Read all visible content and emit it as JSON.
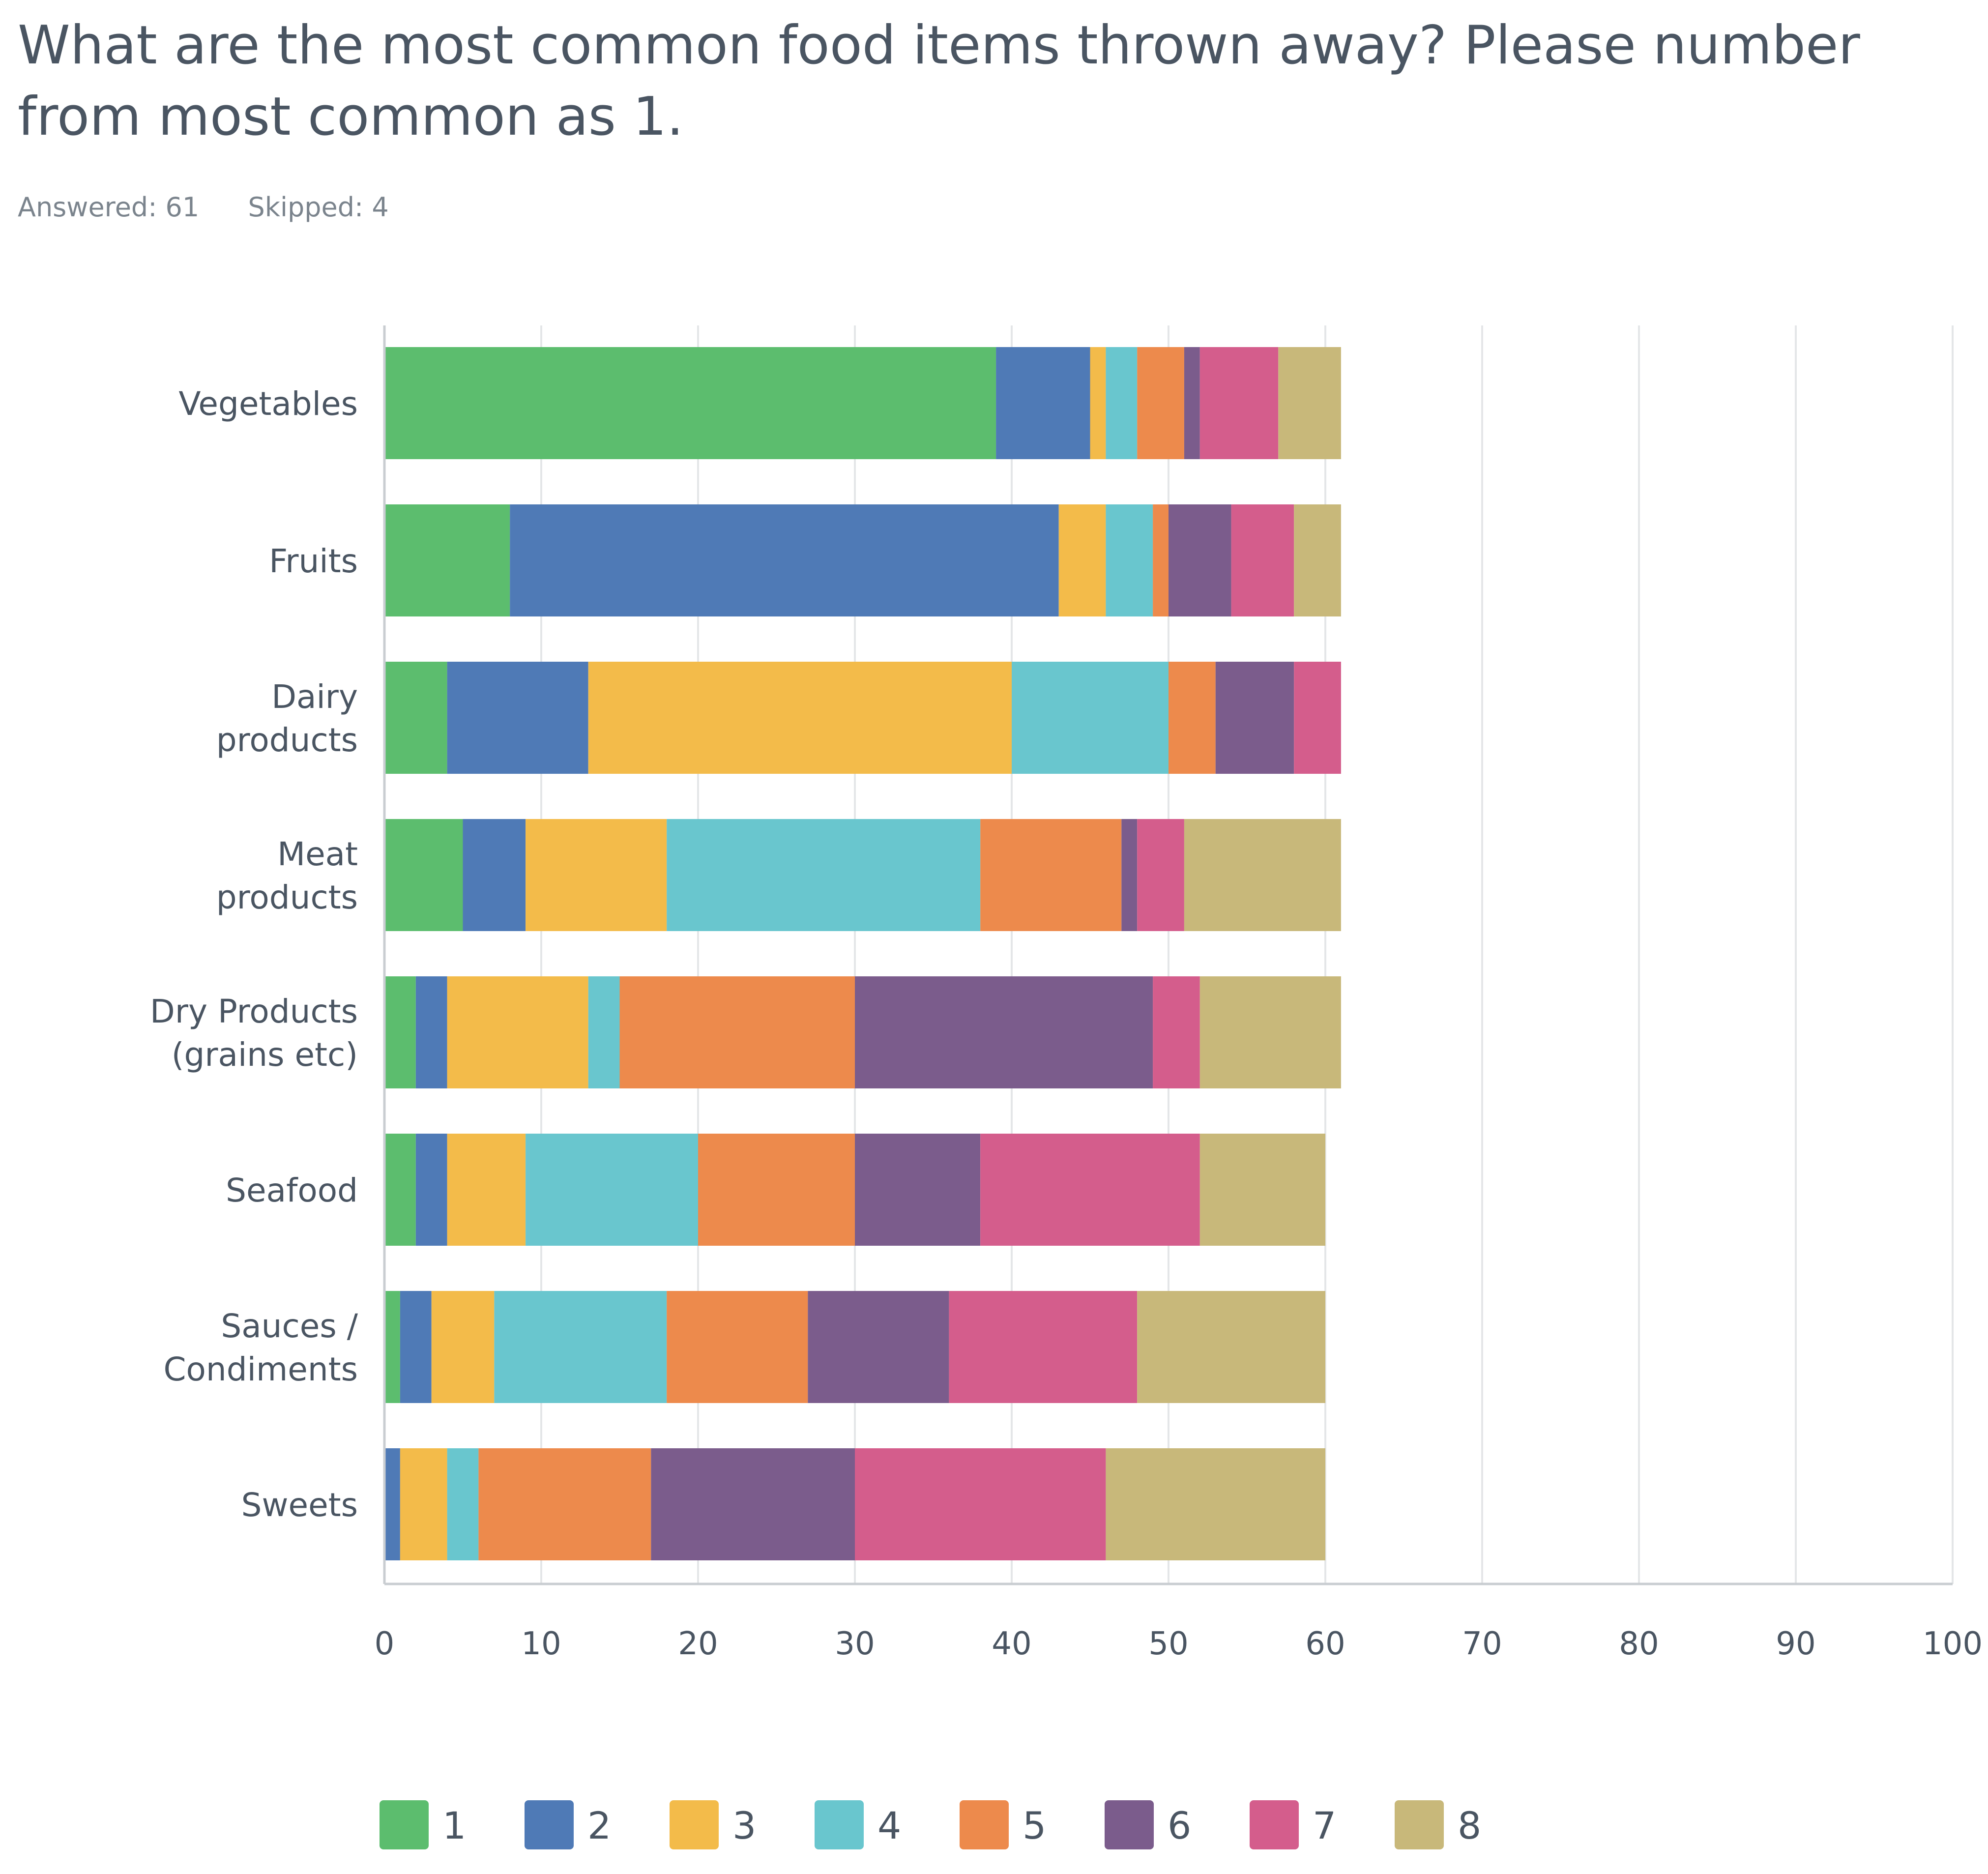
{
  "title": "What are the most common food items thrown away? Please number from most common as 1.",
  "answered": "Answered: 61",
  "skipped": "Skipped: 4",
  "colors": [
    "#5cbd6e",
    "#4f7ab6",
    "#f3bb4a",
    "#69c6ce",
    "#ed8a4c",
    "#7b5c8c",
    "#d45d8c",
    "#c8b87a"
  ],
  "chart_data": {
    "type": "bar",
    "orientation": "horizontal",
    "stacked": true,
    "categories": [
      [
        "Vegetables"
      ],
      [
        "Fruits"
      ],
      [
        "Dairy",
        "products"
      ],
      [
        "Meat",
        "products"
      ],
      [
        "Dry Products",
        "(grains etc)"
      ],
      [
        "Seafood"
      ],
      [
        "Sauces /",
        "Condiments"
      ],
      [
        "Sweets"
      ]
    ],
    "series": [
      {
        "name": "1",
        "values": [
          39,
          8,
          4,
          5,
          2,
          2,
          1,
          0
        ]
      },
      {
        "name": "2",
        "values": [
          6,
          35,
          9,
          4,
          2,
          2,
          2,
          1
        ]
      },
      {
        "name": "3",
        "values": [
          1,
          3,
          27,
          9,
          9,
          5,
          4,
          3
        ]
      },
      {
        "name": "4",
        "values": [
          2,
          3,
          10,
          20,
          2,
          11,
          11,
          2
        ]
      },
      {
        "name": "5",
        "values": [
          3,
          1,
          3,
          9,
          15,
          10,
          9,
          11
        ]
      },
      {
        "name": "6",
        "values": [
          1,
          4,
          5,
          1,
          19,
          8,
          9,
          13
        ]
      },
      {
        "name": "7",
        "values": [
          5,
          4,
          3,
          3,
          3,
          14,
          12,
          16
        ]
      },
      {
        "name": "8",
        "values": [
          4,
          3,
          0,
          10,
          9,
          8,
          12,
          14
        ]
      }
    ],
    "xlim": [
      0,
      100
    ],
    "xticks": [
      0,
      10,
      20,
      30,
      40,
      50,
      60,
      70,
      80,
      90,
      100
    ],
    "grid": true,
    "legend": "bottom"
  }
}
